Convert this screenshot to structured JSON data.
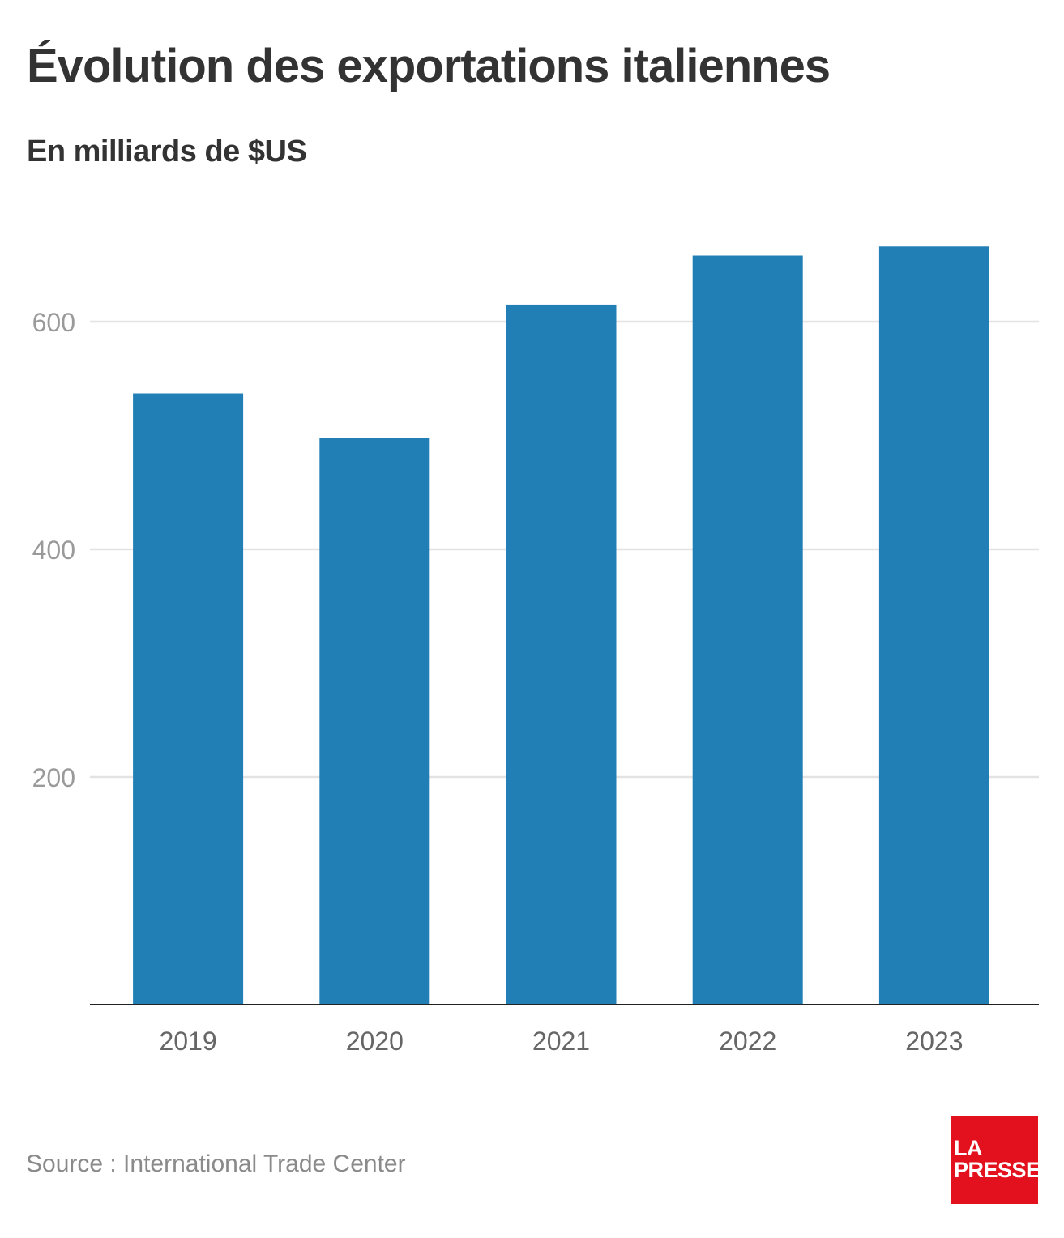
{
  "chart_data": {
    "type": "bar",
    "title": "Évolution des exportations italiennes",
    "subtitle": "En milliards de $US",
    "categories": [
      "2019",
      "2020",
      "2021",
      "2022",
      "2023"
    ],
    "values": [
      537,
      498,
      615,
      658,
      666
    ],
    "xlabel": "",
    "ylabel": "",
    "ylim": [
      0,
      666
    ],
    "yticks": [
      200,
      400,
      600
    ],
    "ytick_labels": [
      "200",
      "400",
      "600"
    ],
    "grid": true,
    "bar_color": "#217fb6",
    "grid_color": "#e3e3e3",
    "axis_color": "#222222"
  },
  "source": "Source : International Trade Center",
  "logo": {
    "line1": "LA",
    "line2": "PRESSE",
    "color": "#e3101d"
  }
}
